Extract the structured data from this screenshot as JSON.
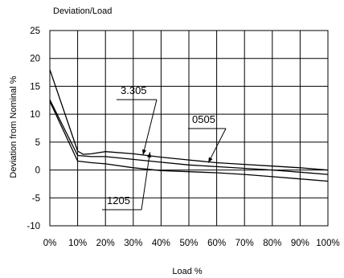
{
  "chart_data": {
    "type": "line",
    "title": "Deviation/Load",
    "xlabel": "Load %",
    "ylabel": "Deviation from Nominal %",
    "xlim": [
      0,
      100
    ],
    "ylim": [
      -10,
      25
    ],
    "grid": true,
    "x_ticks": [
      0,
      10,
      20,
      30,
      40,
      50,
      60,
      70,
      80,
      90,
      100
    ],
    "x_tick_labels": [
      "0%",
      "10%",
      "20%",
      "30%",
      "40%",
      "50%",
      "60%",
      "70%",
      "80%",
      "90%",
      "100%"
    ],
    "y_ticks": [
      25,
      20,
      15,
      10,
      5,
      0,
      -5,
      -10
    ],
    "y_tick_labels": [
      "25",
      "20",
      "15",
      "10",
      "5",
      "0",
      "-5",
      "-10"
    ],
    "series": [
      {
        "name": "3.305",
        "x": [
          0,
          10,
          12,
          15,
          20,
          30,
          40,
          50,
          60,
          70,
          80,
          90,
          100
        ],
        "y": [
          18,
          3.4,
          2.8,
          2.9,
          3.3,
          2.9,
          2.3,
          1.8,
          1.3,
          1.0,
          0.7,
          0.4,
          0.0
        ]
      },
      {
        "name": "0505",
        "x": [
          0,
          10,
          15,
          20,
          30,
          40,
          50,
          60,
          70,
          80,
          90,
          100
        ],
        "y": [
          12.6,
          2.6,
          2.4,
          2.4,
          1.9,
          1.4,
          0.9,
          0.6,
          0.3,
          0.0,
          -0.4,
          -0.8
        ]
      },
      {
        "name": "1205",
        "x": [
          0,
          10,
          15,
          20,
          30,
          40,
          50,
          60,
          70,
          80,
          90,
          100
        ],
        "y": [
          12.3,
          1.6,
          1.3,
          1.1,
          0.4,
          -0.1,
          -0.3,
          -0.5,
          -0.8,
          -1.2,
          -1.6,
          -2.0
        ]
      }
    ],
    "annotations": [
      {
        "label": "3.305",
        "series": "3.305",
        "point_x": 33.5,
        "point_y": 2.7
      },
      {
        "label": "0505",
        "series": "0505",
        "point_x": 57,
        "point_y": 1.3
      },
      {
        "label": "1205",
        "series": "1205",
        "point_x": 36,
        "point_y": 3.2
      }
    ]
  }
}
